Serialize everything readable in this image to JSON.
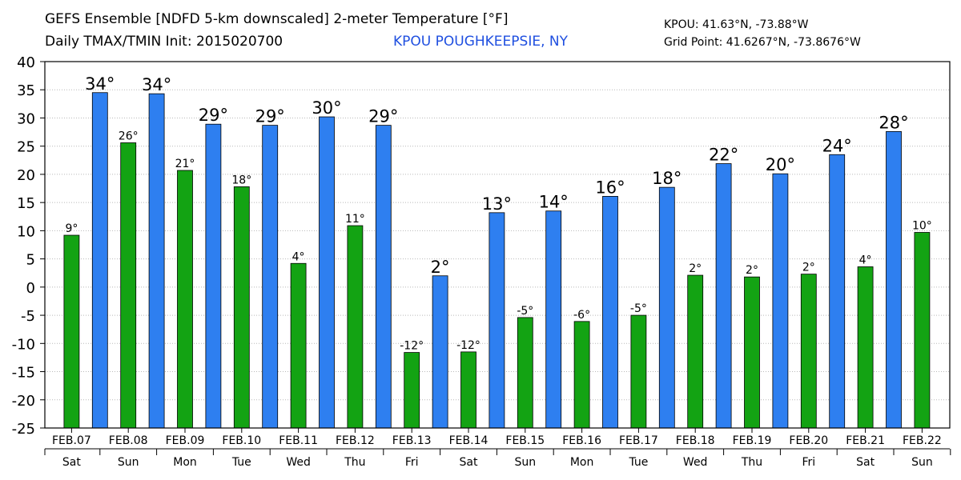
{
  "header": {
    "title": "GEFS Ensemble [NDFD 5-km downscaled] 2-meter Temperature [°F]",
    "subtitle": "Daily TMAX/TMIN Init: 2015020700",
    "station": "KPOU POUGHKEEPSIE, NY",
    "station_coords": "KPOU: 41.63°N, -73.88°W",
    "grid_point": "Grid Point: 41.6267°N, -73.8676°W"
  },
  "colors": {
    "tmax": "#2e7ff0",
    "tmin": "#13a313",
    "grid": "#b9b9b9",
    "axis": "#000000"
  },
  "chart_data": {
    "type": "bar",
    "ylim": [
      -25,
      40
    ],
    "yticks": [
      40,
      35,
      30,
      25,
      20,
      15,
      10,
      5,
      0,
      -5,
      -10,
      -15,
      -20,
      -25
    ],
    "grid": true,
    "categories": [
      "FEB.07",
      "FEB.08",
      "FEB.09",
      "FEB.10",
      "FEB.11",
      "FEB.12",
      "FEB.13",
      "FEB.14",
      "FEB.15",
      "FEB.16",
      "FEB.17",
      "FEB.18",
      "FEB.19",
      "FEB.20",
      "FEB.21",
      "FEB.22"
    ],
    "weekdays": [
      "Sat",
      "Sun",
      "Mon",
      "Tue",
      "Wed",
      "Thu",
      "Fri",
      "Sat",
      "Sun",
      "Mon",
      "Tue",
      "Wed",
      "Thu",
      "Fri",
      "Sat",
      "Sun"
    ],
    "bars": [
      {
        "series": "TMIN",
        "day": 0,
        "value": 9.2,
        "label": "9°"
      },
      {
        "series": "TMAX",
        "day": 0,
        "value": 34.5,
        "label": "34°"
      },
      {
        "series": "TMIN",
        "day": 1,
        "value": 25.6,
        "label": "26°"
      },
      {
        "series": "TMAX",
        "day": 1,
        "value": 34.3,
        "label": "34°"
      },
      {
        "series": "TMIN",
        "day": 2,
        "value": 20.7,
        "label": "21°"
      },
      {
        "series": "TMAX",
        "day": 2,
        "value": 28.9,
        "label": "29°"
      },
      {
        "series": "TMIN",
        "day": 3,
        "value": 17.8,
        "label": "18°"
      },
      {
        "series": "TMAX",
        "day": 3,
        "value": 28.7,
        "label": "29°"
      },
      {
        "series": "TMIN",
        "day": 4,
        "value": 4.2,
        "label": "4°"
      },
      {
        "series": "TMAX",
        "day": 4,
        "value": 30.2,
        "label": "30°"
      },
      {
        "series": "TMIN",
        "day": 5,
        "value": 10.9,
        "label": "11°"
      },
      {
        "series": "TMAX",
        "day": 5,
        "value": 28.7,
        "label": "29°"
      },
      {
        "series": "TMIN",
        "day": 6,
        "value": -11.6,
        "label": "-12°"
      },
      {
        "series": "TMAX",
        "day": 6,
        "value": 2.0,
        "label": "2°"
      },
      {
        "series": "TMIN",
        "day": 7,
        "value": -11.5,
        "label": "-12°"
      },
      {
        "series": "TMAX",
        "day": 7,
        "value": 13.2,
        "label": "13°"
      },
      {
        "series": "TMIN",
        "day": 8,
        "value": -5.4,
        "label": "-5°"
      },
      {
        "series": "TMAX",
        "day": 8,
        "value": 13.5,
        "label": "14°"
      },
      {
        "series": "TMIN",
        "day": 9,
        "value": -6.1,
        "label": "-6°"
      },
      {
        "series": "TMAX",
        "day": 9,
        "value": 16.1,
        "label": "16°"
      },
      {
        "series": "TMIN",
        "day": 10,
        "value": -5.0,
        "label": "-5°"
      },
      {
        "series": "TMAX",
        "day": 10,
        "value": 17.7,
        "label": "18°"
      },
      {
        "series": "TMIN",
        "day": 11,
        "value": 2.1,
        "label": "2°"
      },
      {
        "series": "TMAX",
        "day": 11,
        "value": 21.9,
        "label": "22°"
      },
      {
        "series": "TMIN",
        "day": 12,
        "value": 1.8,
        "label": "2°"
      },
      {
        "series": "TMAX",
        "day": 12,
        "value": 20.1,
        "label": "20°"
      },
      {
        "series": "TMIN",
        "day": 13,
        "value": 2.3,
        "label": "2°"
      },
      {
        "series": "TMAX",
        "day": 13,
        "value": 23.5,
        "label": "24°"
      },
      {
        "series": "TMIN",
        "day": 14,
        "value": 3.6,
        "label": "4°"
      },
      {
        "series": "TMAX",
        "day": 14,
        "value": 27.6,
        "label": "28°"
      },
      {
        "series": "TMIN",
        "day": 15,
        "value": 9.7,
        "label": "10°"
      }
    ]
  }
}
